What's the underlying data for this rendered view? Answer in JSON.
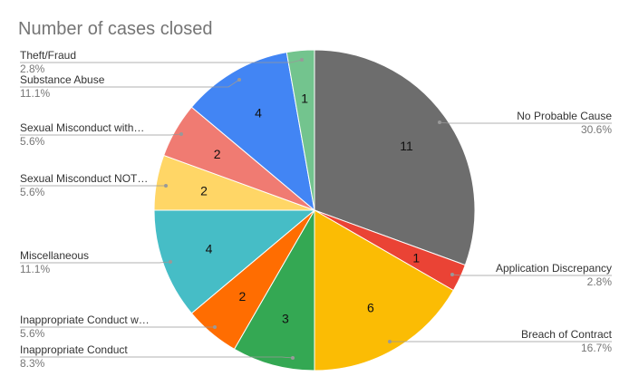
{
  "chart_data": {
    "type": "pie",
    "title": "Number of cases closed",
    "categories": [
      "No Probable Cause",
      "Application Discrepancy",
      "Breach of Contract",
      "Inappropriate Conduct",
      "Inappropriate Conduct w…",
      "Miscellaneous",
      "Sexual Misconduct NOT…",
      "Sexual Misconduct with…",
      "Substance Abuse",
      "Theft/Fraud"
    ],
    "values": [
      11,
      1,
      6,
      3,
      2,
      4,
      2,
      2,
      4,
      1
    ],
    "percent_labels": [
      "30.6%",
      "2.8%",
      "16.7%",
      "8.3%",
      "5.6%",
      "11.1%",
      "5.6%",
      "5.6%",
      "11.1%",
      "2.8%"
    ],
    "colors": [
      "#6d6d6d",
      "#ea4335",
      "#fbbc04",
      "#34a853",
      "#ff6d01",
      "#46bdc6",
      "#ffd666",
      "#f07b72",
      "#4285f4",
      "#73c48e"
    ]
  }
}
